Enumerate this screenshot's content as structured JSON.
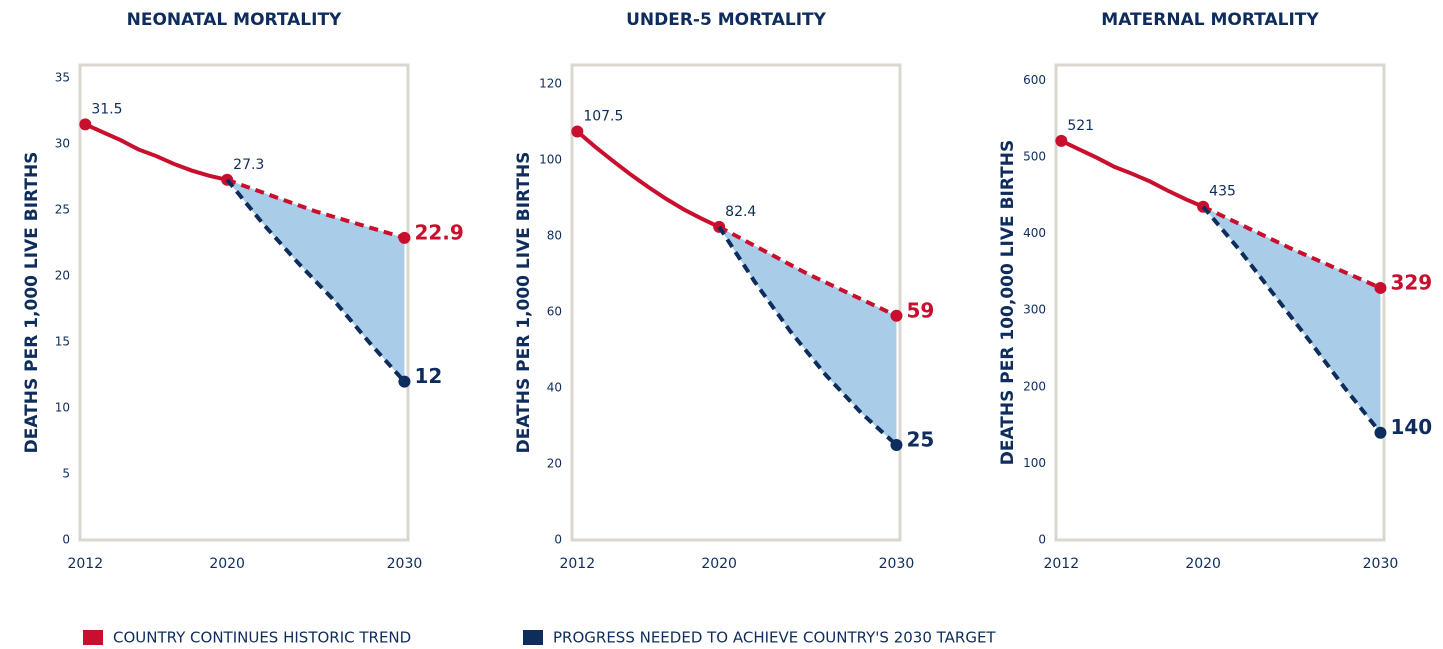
{
  "charts": [
    {
      "chart_data": {
        "type": "line",
        "title": "NEONATAL MORTALITY",
        "ylabel": "DEATHS PER 1,000 LIVE BIRTHS",
        "xlim": [
          2011.7,
          2030.2
        ],
        "xticks": [
          2012,
          2020,
          2030
        ],
        "ylim": [
          0,
          36
        ],
        "yticks": [
          0,
          5,
          10,
          15,
          20,
          25,
          30,
          35
        ],
        "shade_between": [
          1,
          2
        ],
        "shade_color": "#a9cde8",
        "series": [
          {
            "color": "#c8102e",
            "dash": false,
            "labels": [
              "first",
              "last"
            ],
            "label_style": "small",
            "x": [
              2012,
              2013,
              2014,
              2015,
              2016,
              2017,
              2018,
              2019,
              2020
            ],
            "values": [
              31.5,
              30.9,
              30.3,
              29.6,
              29.1,
              28.5,
              28.0,
              27.6,
              27.3
            ]
          },
          {
            "color": "#c8102e",
            "dash": true,
            "labels": [
              "last"
            ],
            "label_style": "large",
            "x": [
              2020,
              2025,
              2030
            ],
            "values": [
              27.3,
              24.9,
              22.9
            ]
          },
          {
            "color": "#0f2d5c",
            "dash": true,
            "labels": [
              "last"
            ],
            "label_style": "large",
            "x": [
              2020,
              2022,
              2024,
              2026,
              2028,
              2030
            ],
            "values": [
              27.3,
              24.0,
              21.0,
              18.2,
              15.0,
              12
            ]
          }
        ]
      }
    },
    {
      "chart_data": {
        "type": "line",
        "title": "UNDER-5 MORTALITY",
        "ylabel": "DEATHS PER 1,000 LIVE BIRTHS",
        "xlim": [
          2011.7,
          2030.2
        ],
        "xticks": [
          2012,
          2020,
          2030
        ],
        "ylim": [
          0,
          125
        ],
        "yticks": [
          0,
          20,
          40,
          60,
          80,
          100,
          120
        ],
        "shade_between": [
          1,
          2
        ],
        "shade_color": "#a9cde8",
        "series": [
          {
            "color": "#c8102e",
            "dash": false,
            "labels": [
              "first",
              "last"
            ],
            "label_style": "small",
            "x": [
              2012,
              2013,
              2014,
              2015,
              2016,
              2017,
              2018,
              2019,
              2020
            ],
            "values": [
              107.5,
              103.5,
              99.8,
              96.2,
              92.9,
              89.8,
              87.0,
              84.6,
              82.4
            ]
          },
          {
            "color": "#c8102e",
            "dash": true,
            "labels": [
              "last"
            ],
            "label_style": "large",
            "x": [
              2020,
              2025,
              2030
            ],
            "values": [
              82.4,
              70,
              59
            ]
          },
          {
            "color": "#0f2d5c",
            "dash": true,
            "labels": [
              "last"
            ],
            "label_style": "large",
            "x": [
              2020,
              2022,
              2024,
              2026,
              2028,
              2030
            ],
            "values": [
              82.4,
              68,
              55,
              43.5,
              33.5,
              25
            ]
          }
        ]
      }
    },
    {
      "chart_data": {
        "type": "line",
        "title": "MATERNAL MORTALITY",
        "ylabel": "DEATHS PER 100,000 LIVE BIRTHS",
        "xlim": [
          2011.7,
          2030.2
        ],
        "xticks": [
          2012,
          2020,
          2030
        ],
        "ylim": [
          0,
          620
        ],
        "yticks": [
          0,
          100,
          200,
          300,
          400,
          500,
          600
        ],
        "shade_between": [
          1,
          2
        ],
        "shade_color": "#a9cde8",
        "series": [
          {
            "color": "#c8102e",
            "dash": false,
            "labels": [
              "first",
              "last"
            ],
            "label_style": "small",
            "x": [
              2012,
              2013,
              2014,
              2015,
              2016,
              2017,
              2018,
              2019,
              2020
            ],
            "values": [
              521,
              510,
              499,
              487,
              478,
              468,
              456,
              445,
              435
            ]
          },
          {
            "color": "#c8102e",
            "dash": true,
            "labels": [
              "last"
            ],
            "label_style": "large",
            "x": [
              2020,
              2025,
              2030
            ],
            "values": [
              435,
              380,
              329
            ]
          },
          {
            "color": "#0f2d5c",
            "dash": true,
            "labels": [
              "last"
            ],
            "label_style": "large",
            "x": [
              2020,
              2022,
              2024,
              2026,
              2028,
              2030
            ],
            "values": [
              435,
              380,
              320,
              260,
              198,
              140
            ]
          }
        ]
      }
    }
  ],
  "legend": [
    {
      "name": "COUNTRY CONTINUES HISTORIC TREND",
      "color": "#c8102e"
    },
    {
      "name": "PROGRESS NEEDED TO ACHIEVE COUNTRY'S 2030 TARGET",
      "color": "#0f2d5c"
    }
  ]
}
